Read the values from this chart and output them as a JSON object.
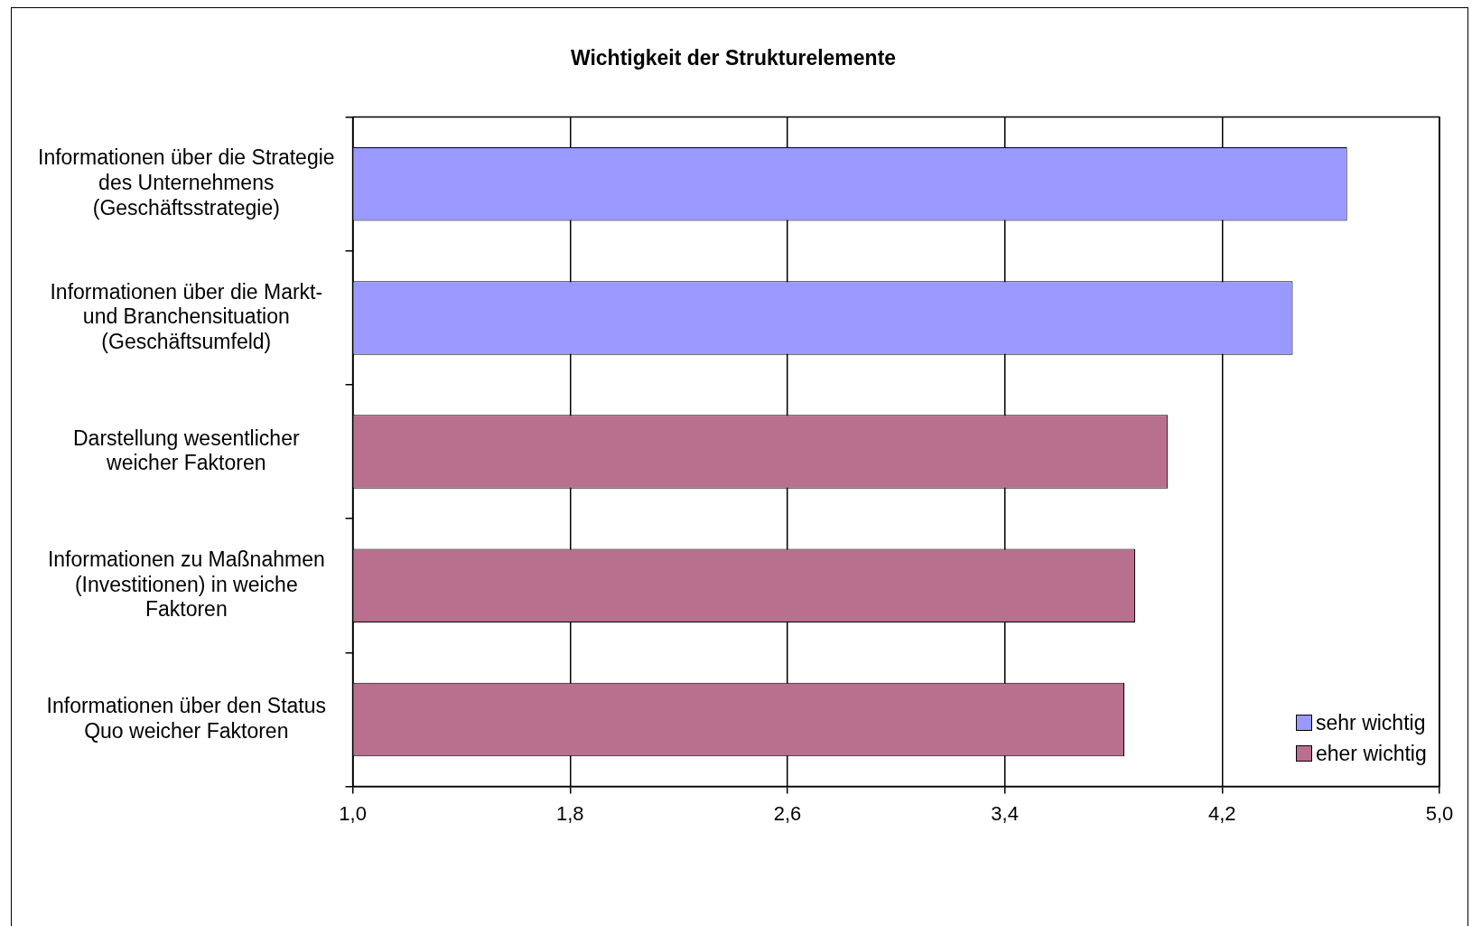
{
  "chart_data": {
    "type": "bar",
    "orientation": "horizontal",
    "title": "Wichtigkeit der Strukturelemente",
    "categories": [
      "Informationen über die Strategie\ndes Unternehmens\n(Geschäftsstrategie)",
      "Informationen über die Markt-\nund Branchensituation\n(Geschäftsumfeld)",
      "Darstellung wesentlicher\nweicher Faktoren",
      "Informationen zu Maßnahmen\n(Investitionen) in weiche\nFaktoren",
      "Informationen über den Status\nQuo weicher Faktoren"
    ],
    "series": [
      {
        "name": "sehr wichtig",
        "color": "#9999ff",
        "values": [
          4.66,
          4.46,
          null,
          null,
          null
        ]
      },
      {
        "name": "eher wichtig",
        "color": "#b8708e",
        "values": [
          null,
          null,
          4.0,
          3.88,
          3.84
        ]
      }
    ],
    "xlim": [
      1.0,
      5.0
    ],
    "xticks": [
      {
        "value": 1.0,
        "label": "1,0"
      },
      {
        "value": 1.8,
        "label": "1,8"
      },
      {
        "value": 2.6,
        "label": "2,6"
      },
      {
        "value": 3.4,
        "label": "3,4"
      },
      {
        "value": 4.2,
        "label": "4,2"
      },
      {
        "value": 5.0,
        "label": "5,0"
      }
    ],
    "grid": "x",
    "legend": "bottom right"
  }
}
